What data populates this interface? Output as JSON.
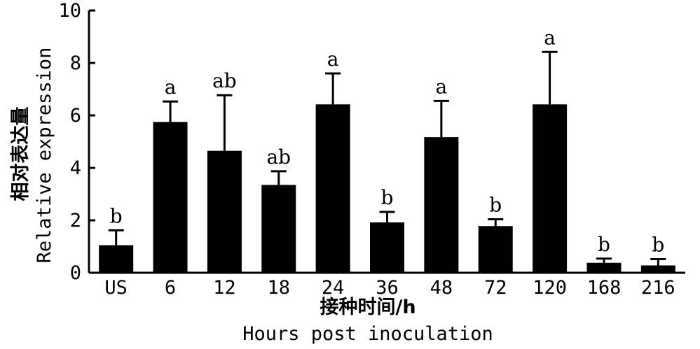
{
  "chart_data": {
    "type": "bar",
    "categories": [
      "US",
      "6",
      "12",
      "18",
      "24",
      "36",
      "48",
      "72",
      "120",
      "168",
      "216"
    ],
    "values": [
      1.05,
      5.75,
      4.65,
      3.35,
      6.42,
      1.92,
      5.17,
      1.78,
      6.42,
      0.38,
      0.28
    ],
    "errors": [
      0.57,
      0.78,
      2.12,
      0.52,
      1.18,
      0.4,
      1.38,
      0.26,
      2.0,
      0.16,
      0.24
    ],
    "significance": [
      "b",
      "a",
      "ab",
      "ab",
      "a",
      "b",
      "a",
      "b",
      "a",
      "b",
      "b"
    ],
    "yticks": [
      "0",
      "2",
      "4",
      "6",
      "8",
      "10"
    ],
    "ylim": [
      0,
      10
    ],
    "xlabel_cn": "接种时间/h",
    "xlabel_en": "Hours post inoculation",
    "ylabel_cn": "相对表达量",
    "ylabel_en": "Relative expression",
    "bar_color": "#000000"
  }
}
